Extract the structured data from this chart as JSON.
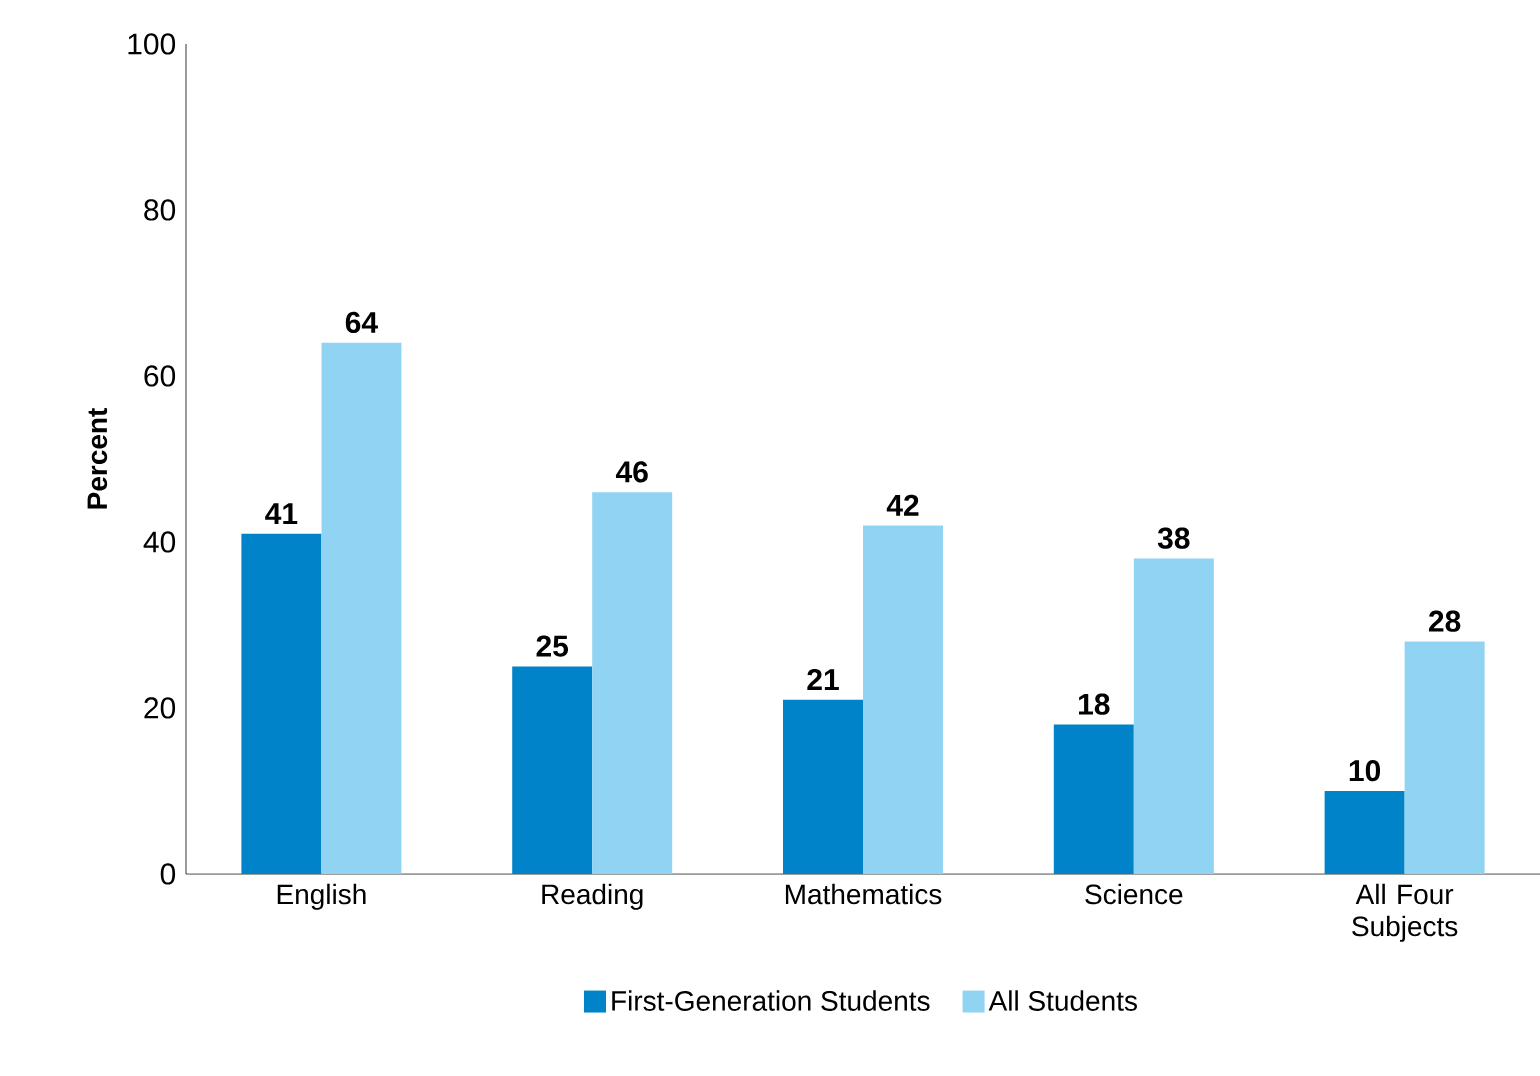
{
  "chart_data": {
    "type": "bar",
    "ylabel": "Percent",
    "categories": [
      "English",
      "Reading",
      "Mathematics",
      "Science",
      "All Four Subjects"
    ],
    "series": [
      {
        "name": "First-Generation Students",
        "color": "#0083c8",
        "values": [
          41,
          25,
          21,
          18,
          10
        ]
      },
      {
        "name": "All Students",
        "color": "#91d3f3",
        "values": [
          64,
          46,
          42,
          38,
          28
        ]
      }
    ],
    "ylim": [
      0,
      100
    ],
    "yticks": [
      0,
      20,
      40,
      60,
      80,
      100
    ],
    "data_labels": true,
    "legend": "bottom"
  }
}
